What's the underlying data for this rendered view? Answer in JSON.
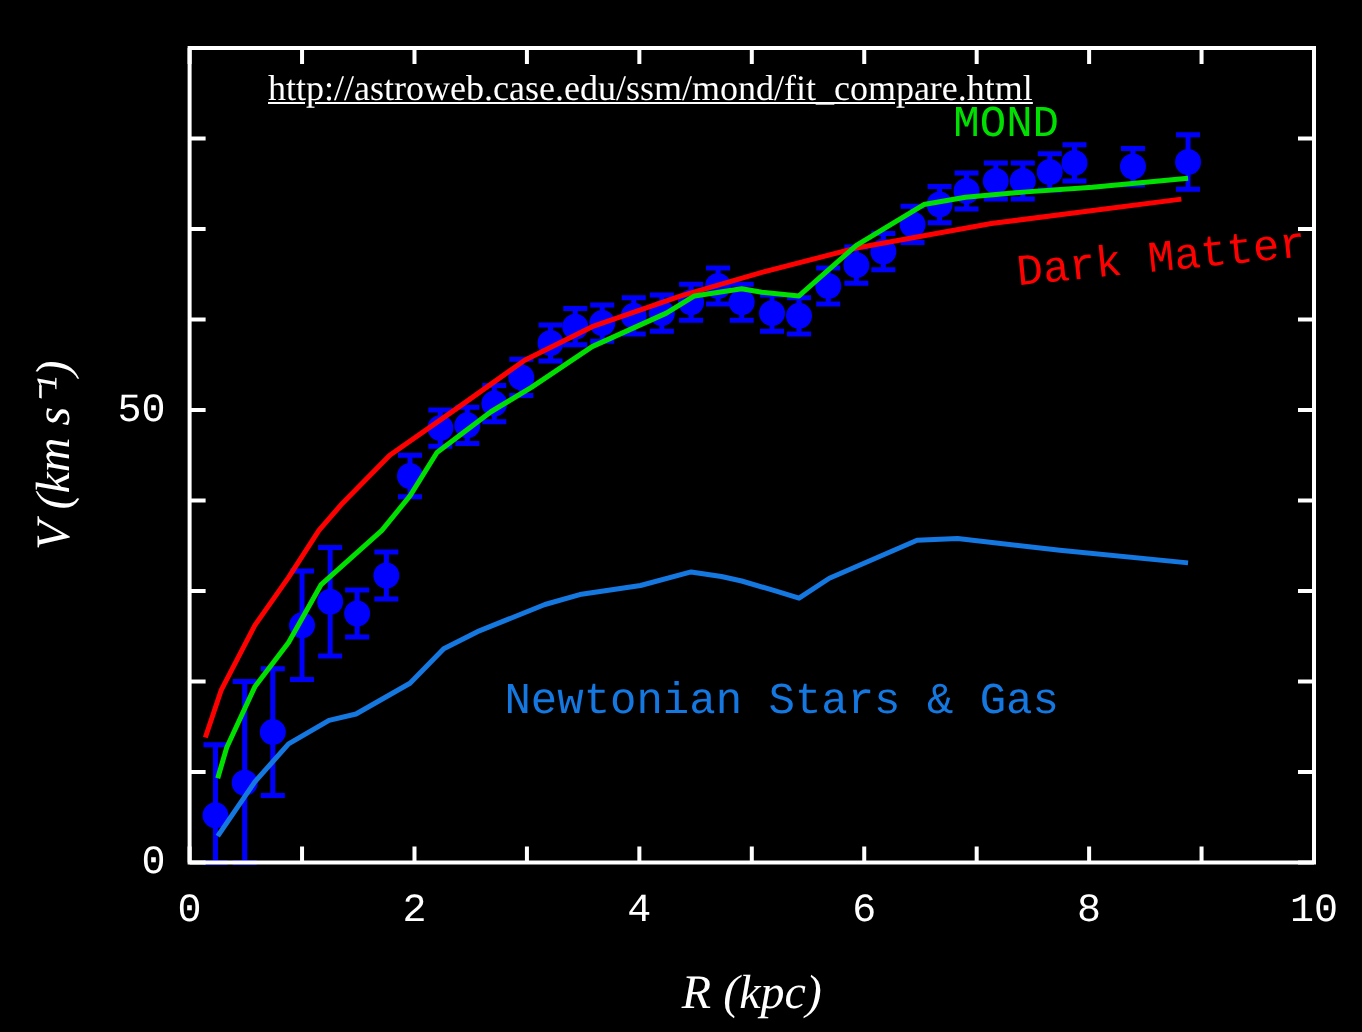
{
  "chart_data": {
    "type": "line",
    "xlabel": "R (kpc)",
    "ylabel": "V (km s⁻¹)",
    "xlim": [
      0,
      10
    ],
    "ylim": [
      0,
      90
    ],
    "xticks": [
      0,
      {
        "value": 1,
        "label": null
      },
      2,
      {
        "value": 3,
        "label": null
      },
      4,
      {
        "value": 5,
        "label": null
      },
      6,
      {
        "value": 7,
        "label": null
      },
      8,
      {
        "value": 9,
        "label": null
      },
      10
    ],
    "yticks": [
      0,
      {
        "value": 10,
        "label": null
      },
      {
        "value": 20,
        "label": null
      },
      {
        "value": 30,
        "label": null
      },
      {
        "value": 40,
        "label": null
      },
      50,
      {
        "value": 60,
        "label": null
      },
      {
        "value": 70,
        "label": null
      },
      {
        "value": 80,
        "label": null
      },
      {
        "value": 90,
        "label": null
      }
    ],
    "grid": false,
    "legend": false,
    "annotations": [
      "http://astroweb.case.edu/ssm/mond/fit_compare.html"
    ],
    "series": [
      {
        "type": "scatter",
        "color": "#0000ff",
        "marker": "circle",
        "x": [
          0.23,
          0.49,
          0.74,
          1.0,
          1.25,
          1.49,
          1.75,
          1.96,
          2.23,
          2.47,
          2.71,
          2.95,
          3.21,
          3.43,
          3.67,
          3.95,
          4.2,
          4.46,
          4.7,
          4.91,
          5.18,
          5.42,
          5.68,
          5.93,
          6.17,
          6.43,
          6.67,
          6.91,
          7.17,
          7.41,
          7.65,
          7.87,
          8.39,
          8.88
        ],
        "values": [
          5.2,
          8.8,
          14.4,
          26.2,
          28.8,
          27.5,
          31.7,
          42.7,
          48,
          48.3,
          50.7,
          53.6,
          57.4,
          59.2,
          59.6,
          60.4,
          60.7,
          61.9,
          63.7,
          61.9,
          60.7,
          60.4,
          63.7,
          66,
          67.5,
          70.5,
          72.7,
          74.2,
          75.3,
          75.3,
          76.3,
          77.3,
          76.9,
          77.4
        ],
        "errors": [
          [
            0,
            13
          ],
          [
            0,
            20
          ],
          7,
          6,
          6,
          2.6,
          2.6,
          2.3,
          2,
          2,
          2,
          2,
          2,
          2,
          2,
          2,
          2,
          2,
          2,
          2,
          2,
          2,
          2,
          2,
          2,
          2,
          2,
          2,
          2,
          2,
          2,
          2,
          2,
          3
        ]
      },
      {
        "type": "line",
        "name": "MOND",
        "color": "#00e000",
        "marker": "none",
        "x": [
          0.25,
          0.33,
          0.58,
          0.88,
          1.17,
          1.71,
          1.96,
          2.2,
          2.68,
          3.04,
          3.58,
          4.24,
          4.49,
          4.91,
          5.09,
          5.42,
          5.93,
          6.53,
          6.9,
          7.44,
          8.03,
          8.88
        ],
        "values": [
          9.3,
          12.7,
          19.4,
          24.3,
          30.7,
          36.7,
          40.5,
          45.3,
          49.8,
          52.5,
          57,
          60.7,
          62.6,
          63.4,
          63,
          62.6,
          68.2,
          72.7,
          73.5,
          74.1,
          74.6,
          75.6
        ]
      },
      {
        "type": "line",
        "name": "Dark Matter",
        "color": "#ff0000",
        "marker": "none",
        "x": [
          0.14,
          0.28,
          0.58,
          0.88,
          1.15,
          1.36,
          1.78,
          2.38,
          2.98,
          3.58,
          4.37,
          5.09,
          5.93,
          7.13,
          8.82
        ],
        "values": [
          13.8,
          19,
          26.2,
          31.5,
          36.7,
          39.7,
          45,
          50.2,
          55.5,
          59.2,
          62.6,
          65.2,
          67.9,
          70.6,
          73.3
        ]
      },
      {
        "type": "line",
        "name": "Newtonian Stars & Gas",
        "color": "#1478e0",
        "marker": "none",
        "x": [
          0.25,
          0.58,
          0.88,
          1.24,
          1.48,
          1.96,
          2.26,
          2.56,
          3.16,
          3.47,
          4.01,
          4.46,
          4.73,
          4.91,
          5.21,
          5.42,
          5.69,
          6.47,
          6.83,
          7.74,
          8.88
        ],
        "values": [
          2.9,
          8.9,
          13.1,
          15.7,
          16.4,
          19.8,
          23.6,
          25.5,
          28.5,
          29.6,
          30.6,
          32.1,
          31.6,
          31.1,
          30,
          29.2,
          31.4,
          35.6,
          35.8,
          34.5,
          33.1
        ]
      }
    ]
  }
}
